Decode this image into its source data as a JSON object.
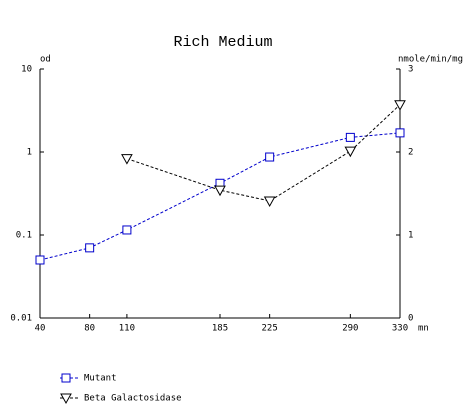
{
  "chart_data": {
    "type": "line",
    "title": "Rich Medium",
    "y_label": "od",
    "y2_label": "nmole/min/mg",
    "x_label": "mn",
    "xlim": [
      40,
      330
    ],
    "xticks": [
      40,
      80,
      110,
      185,
      225,
      290,
      330
    ],
    "ylim": [
      0.01,
      10
    ],
    "yticks": [
      10,
      1,
      0.1,
      0.01
    ],
    "ylog": true,
    "y2lim": [
      0,
      3
    ],
    "y2ticks": [
      0,
      1,
      2,
      3
    ],
    "series": [
      {
        "name": "Mutant",
        "color": "#0000cc",
        "marker": "square",
        "axis": "y",
        "x": [
          40,
          80,
          110,
          185,
          225,
          290,
          330
        ],
        "values": [
          0.05,
          0.07,
          0.115,
          0.42,
          0.87,
          1.5,
          1.7
        ]
      },
      {
        "name": "Beta Galactosidase",
        "color": "#000000",
        "marker": "triangle-down",
        "axis": "y2",
        "x": [
          110,
          185,
          225,
          290,
          330
        ],
        "values": [
          1.92,
          1.54,
          1.41,
          2.01,
          2.57
        ]
      }
    ]
  }
}
